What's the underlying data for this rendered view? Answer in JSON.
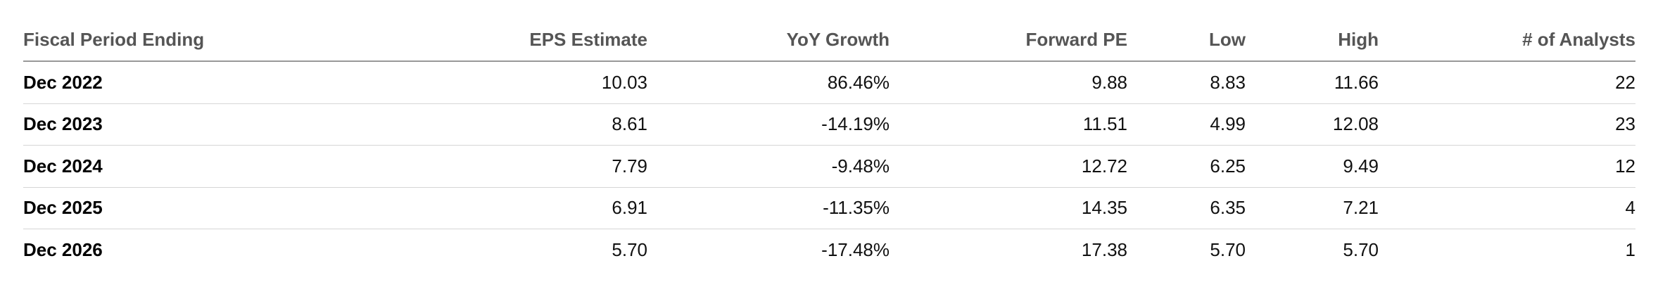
{
  "table": {
    "columns": [
      "Fiscal Period Ending",
      "EPS Estimate",
      "YoY Growth",
      "Forward PE",
      "Low",
      "High",
      "# of Analysts"
    ],
    "rows": [
      [
        "Dec 2022",
        "10.03",
        "86.46%",
        "9.88",
        "8.83",
        "11.66",
        "22"
      ],
      [
        "Dec 2023",
        "8.61",
        "-14.19%",
        "11.51",
        "4.99",
        "12.08",
        "23"
      ],
      [
        "Dec 2024",
        "7.79",
        "-9.48%",
        "12.72",
        "6.25",
        "9.49",
        "12"
      ],
      [
        "Dec 2025",
        "6.91",
        "-11.35%",
        "14.35",
        "6.35",
        "7.21",
        "4"
      ],
      [
        "Dec 2026",
        "5.70",
        "-17.48%",
        "17.38",
        "5.70",
        "5.70",
        "1"
      ]
    ]
  }
}
